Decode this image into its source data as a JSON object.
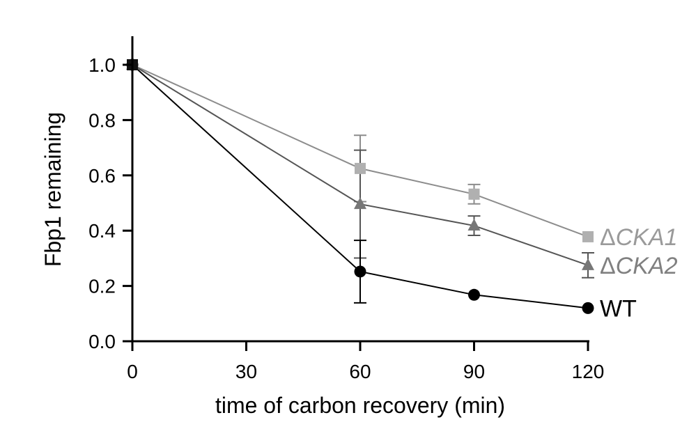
{
  "chart_data": {
    "type": "line",
    "xlabel": "time of carbon recovery (min)",
    "ylabel": "Fbp1 remaining",
    "x": [
      0,
      60,
      90,
      120
    ],
    "xticks": [
      0,
      30,
      60,
      90,
      120
    ],
    "xtick_labels": [
      "0",
      "30",
      "60",
      "90",
      "120"
    ],
    "yticks": [
      0.0,
      0.2,
      0.4,
      0.6,
      0.8,
      1.0
    ],
    "ytick_labels": [
      "0.0",
      "0.2",
      "0.4",
      "0.6",
      "0.8",
      "1.0"
    ],
    "xlim": [
      0,
      120
    ],
    "ylim": [
      0,
      1.1
    ],
    "grid": false,
    "legend": "inline labels at right end of each line",
    "series": [
      {
        "name": "ΔCKA1",
        "label_delta": "Δ",
        "label_gene": "CKA1",
        "marker": "square",
        "color": "#b0b0b0",
        "line_color": "#8c8c8c",
        "values": [
          1.0,
          0.625,
          0.532,
          0.378
        ],
        "errors": [
          0,
          0.12,
          0.035,
          0
        ]
      },
      {
        "name": "ΔCKA2",
        "label_delta": "Δ",
        "label_gene": "CKA2",
        "marker": "triangle",
        "color": "#777777",
        "line_color": "#555555",
        "values": [
          1.0,
          0.496,
          0.418,
          0.275
        ],
        "errors": [
          0,
          0.195,
          0.035,
          0.045
        ]
      },
      {
        "name": "WT",
        "label_delta": "",
        "label_gene": "WT",
        "marker": "circle",
        "color": "#000000",
        "line_color": "#000000",
        "values": [
          1.0,
          0.252,
          0.168,
          0.12
        ],
        "errors": [
          0,
          0.113,
          0,
          0
        ]
      }
    ]
  }
}
